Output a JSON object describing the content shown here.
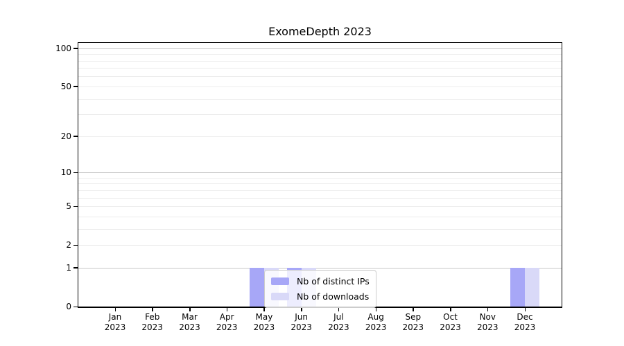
{
  "chart_data": {
    "type": "bar",
    "title": "ExomeDepth 2023",
    "x_categories": [
      {
        "month": "Jan",
        "year": "2023"
      },
      {
        "month": "Feb",
        "year": "2023"
      },
      {
        "month": "Mar",
        "year": "2023"
      },
      {
        "month": "Apr",
        "year": "2023"
      },
      {
        "month": "May",
        "year": "2023"
      },
      {
        "month": "Jun",
        "year": "2023"
      },
      {
        "month": "Jul",
        "year": "2023"
      },
      {
        "month": "Aug",
        "year": "2023"
      },
      {
        "month": "Sep",
        "year": "2023"
      },
      {
        "month": "Oct",
        "year": "2023"
      },
      {
        "month": "Nov",
        "year": "2023"
      },
      {
        "month": "Dec",
        "year": "2023"
      }
    ],
    "series": [
      {
        "name": "Nb of distinct IPs",
        "color": "#a7a7f7",
        "values": [
          0,
          0,
          0,
          0,
          1,
          1,
          0,
          0,
          0,
          0,
          0,
          1
        ]
      },
      {
        "name": "Nb of downloads",
        "color": "#d9d9f8",
        "values": [
          0,
          0,
          0,
          0,
          1,
          1,
          0,
          0,
          0,
          0,
          0,
          1
        ]
      }
    ],
    "y_axis": {
      "scale": "log1p",
      "max": 110,
      "ticks": [
        0,
        1,
        2,
        5,
        10,
        20,
        50,
        100
      ],
      "major_gridlines": [
        1,
        10,
        100
      ],
      "minor_gridlines": [
        2,
        3,
        4,
        5,
        6,
        7,
        8,
        9,
        20,
        30,
        40,
        50,
        60,
        70,
        80,
        90
      ]
    },
    "legend_position": "inside-bottom-center",
    "grid": "horizontal",
    "colors": {
      "grid_minor": "#ececec",
      "grid_major": "#c6c6c6",
      "axis": "#000000"
    }
  }
}
